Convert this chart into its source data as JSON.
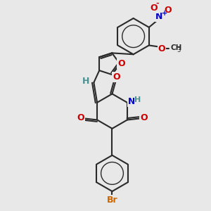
{
  "bg_color": "#e8e8e8",
  "bond_color": "#2a2a2a",
  "atom_colors": {
    "O": "#cc0000",
    "N": "#0000cc",
    "Br": "#cc6600",
    "H": "#4a9090",
    "C": "#2a2a2a"
  },
  "figsize": [
    3.0,
    3.0
  ],
  "dpi": 100
}
